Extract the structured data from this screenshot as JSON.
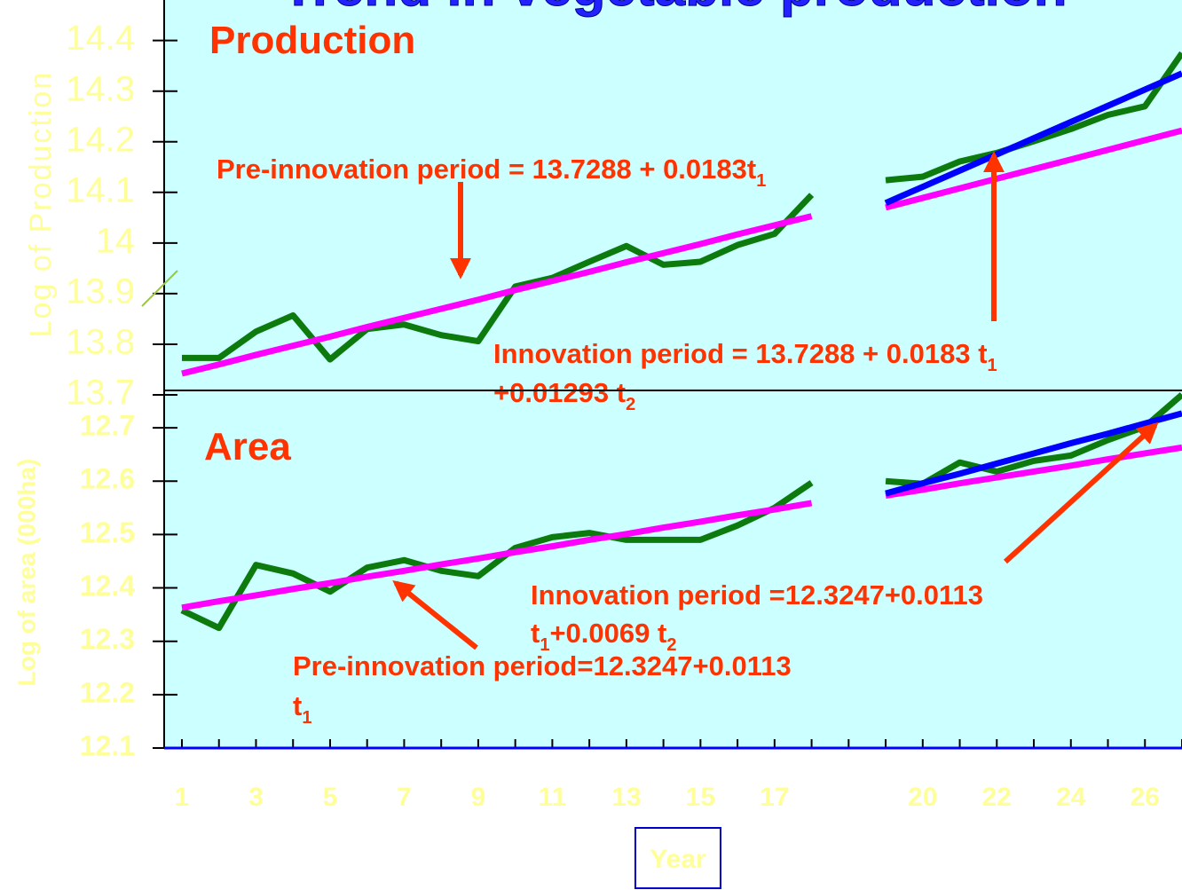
{
  "chart_data": [
    {
      "type": "line",
      "title": "Trend in vegetable production",
      "label": "Production",
      "ylabel": "Log of Production",
      "ylim": [
        13.7,
        14.48
      ],
      "yticks": [
        13.7,
        13.8,
        13.9,
        14,
        14.1,
        14.2,
        14.3,
        14.4
      ],
      "series": [
        {
          "color": "#0d7a0d",
          "values": [
            13.773,
            13.773,
            13.825,
            13.857,
            13.77,
            13.83,
            13.839,
            13.818,
            13.806,
            13.914,
            13.931,
            13.963,
            13.994,
            13.957,
            13.963,
            13.996,
            14.018,
            14.095,
            null,
            14.124,
            14.131,
            14.161,
            14.178,
            14.201,
            14.225,
            14.253,
            14.27,
            14.375
          ]
        },
        {
          "color": "#ff00ff",
          "values": [
            13.742,
            13.76,
            13.779,
            13.797,
            13.815,
            13.834,
            13.852,
            13.87,
            13.888,
            13.907,
            13.925,
            13.943,
            13.962,
            13.98,
            13.998,
            14.017,
            14.035,
            14.053,
            null,
            14.07,
            14.089,
            14.108,
            14.127,
            14.146,
            14.165,
            14.184,
            14.203,
            14.222
          ]
        },
        {
          "color": "#0000ff",
          "values": [
            null,
            null,
            null,
            null,
            null,
            null,
            null,
            null,
            null,
            null,
            null,
            null,
            null,
            null,
            null,
            null,
            null,
            null,
            null,
            14.079,
            14.111,
            14.143,
            14.175,
            14.207,
            14.239,
            14.271,
            14.303,
            14.335
          ]
        }
      ],
      "annotations": [
        [
          [
            "Pre-innovation period = 13.7288 + 0.0183t",
            "1"
          ]
        ],
        [
          [
            "Innovation period = 13.7288 + 0.0183 t",
            "1"
          ],
          [
            "+0.01293 t",
            "2"
          ]
        ]
      ]
    },
    {
      "type": "line",
      "label": "Area",
      "ylabel": "Log of area (000ha)",
      "xlabel": "Year",
      "categories": [
        "1",
        null,
        "3",
        null,
        "5",
        null,
        "7",
        null,
        "9",
        null,
        "11",
        null,
        "13",
        null,
        "15",
        null,
        "17",
        null,
        null,
        null,
        "20",
        null,
        "22",
        null,
        "24",
        null,
        "26",
        null
      ],
      "ylim": [
        12.1,
        12.77
      ],
      "yticks": [
        12.1,
        12.2,
        12.3,
        12.4,
        12.5,
        12.6,
        12.7
      ],
      "series": [
        {
          "color": "#0d7a0d",
          "values": [
            12.358,
            12.325,
            12.443,
            12.427,
            12.393,
            12.438,
            12.452,
            12.432,
            12.422,
            12.475,
            12.495,
            12.503,
            12.49,
            12.49,
            12.49,
            12.517,
            12.55,
            12.597,
            null,
            12.6,
            12.595,
            12.635,
            12.618,
            12.638,
            12.648,
            12.677,
            12.702,
            12.762
          ]
        },
        {
          "color": "#ff00ff",
          "values": [
            12.363,
            12.375,
            12.386,
            12.398,
            12.409,
            12.421,
            12.432,
            12.444,
            12.455,
            12.467,
            12.478,
            12.49,
            12.501,
            12.513,
            12.524,
            12.536,
            12.547,
            12.559,
            null,
            12.573,
            12.584,
            12.596,
            12.607,
            12.618,
            12.629,
            12.641,
            12.652,
            12.663
          ]
        },
        {
          "color": "#0000ff",
          "values": [
            null,
            null,
            null,
            null,
            null,
            null,
            null,
            null,
            null,
            null,
            null,
            null,
            null,
            null,
            null,
            null,
            null,
            null,
            null,
            12.577,
            12.596,
            12.614,
            12.633,
            12.652,
            12.671,
            12.689,
            12.708,
            12.727
          ]
        }
      ],
      "annotations": [
        [
          [
            "Innovation period =12.3247+0.0113"
          ],
          [
            "t",
            "1",
            "+0.0069 t",
            "2"
          ]
        ],
        [
          [
            "Pre-innovation period=12.3247+0.0113"
          ],
          [
            "t",
            "1"
          ]
        ]
      ]
    }
  ]
}
